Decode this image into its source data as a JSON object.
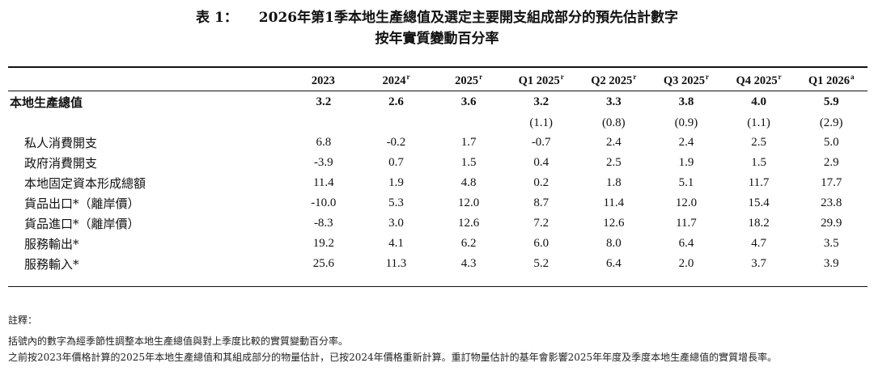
{
  "title": {
    "label": "表 1：",
    "line1": "2026年第1季本地生產總值及選定主要開支組成部分的預先估計數字",
    "line2": "按年實質變動百分率"
  },
  "table": {
    "columns": [
      {
        "label": "2023",
        "sup": ""
      },
      {
        "label": "2024",
        "sup": "r"
      },
      {
        "label": "2025",
        "sup": "r"
      },
      {
        "label": "Q1 2025",
        "sup": "r"
      },
      {
        "label": "Q2 2025",
        "sup": "r"
      },
      {
        "label": "Q3 2025",
        "sup": "r"
      },
      {
        "label": "Q4 2025",
        "sup": "r"
      },
      {
        "label": "Q1 2026",
        "sup": "a"
      }
    ],
    "gdp": {
      "label": "本地生產總值",
      "values": [
        "3.2",
        "2.6",
        "3.6",
        "3.2",
        "3.3",
        "3.8",
        "4.0",
        "5.9"
      ]
    },
    "gdp_qoq": [
      "",
      "",
      "",
      "(1.1)",
      "(0.8)",
      "(0.9)",
      "(1.1)",
      "(2.9)"
    ],
    "rows": [
      {
        "label": "私人消費開支",
        "values": [
          "6.8",
          "-0.2",
          "1.7",
          "-0.7",
          "2.4",
          "2.4",
          "2.5",
          "5.0"
        ]
      },
      {
        "label": "政府消費開支",
        "values": [
          "-3.9",
          "0.7",
          "1.5",
          "0.4",
          "2.5",
          "1.9",
          "1.5",
          "2.9"
        ]
      },
      {
        "label": "本地固定資本形成總額",
        "values": [
          "11.4",
          "1.9",
          "4.8",
          "0.2",
          "1.8",
          "5.1",
          "11.7",
          "17.7"
        ]
      },
      {
        "label": "貨品出口*（離岸價）",
        "values": [
          "-10.0",
          "5.3",
          "12.0",
          "8.7",
          "11.4",
          "12.0",
          "15.4",
          "23.8"
        ]
      },
      {
        "label": "貨品進口*（離岸價）",
        "values": [
          "-8.3",
          "3.0",
          "12.6",
          "7.2",
          "12.6",
          "11.7",
          "18.2",
          "29.9"
        ]
      },
      {
        "label": "服務輸出*",
        "values": [
          "19.2",
          "4.1",
          "6.2",
          "6.0",
          "8.0",
          "6.4",
          "4.7",
          "3.5"
        ]
      },
      {
        "label": "服務輸入*",
        "values": [
          "25.6",
          "11.3",
          "4.3",
          "5.2",
          "6.4",
          "2.0",
          "3.7",
          "3.9"
        ]
      }
    ]
  },
  "notes": {
    "heading": "註釋：",
    "note1": "括號內的數字為經季節性調整本地生產總值與對上季度比較的實質變動百分率。",
    "note2": "之前按2023年價格計算的2025年本地生產總值和其組成部分的物量估計，已按2024年價格重新計算。重訂物量估計的基年會影響2025年年度及季度本地生產總值的實質增長率。"
  }
}
